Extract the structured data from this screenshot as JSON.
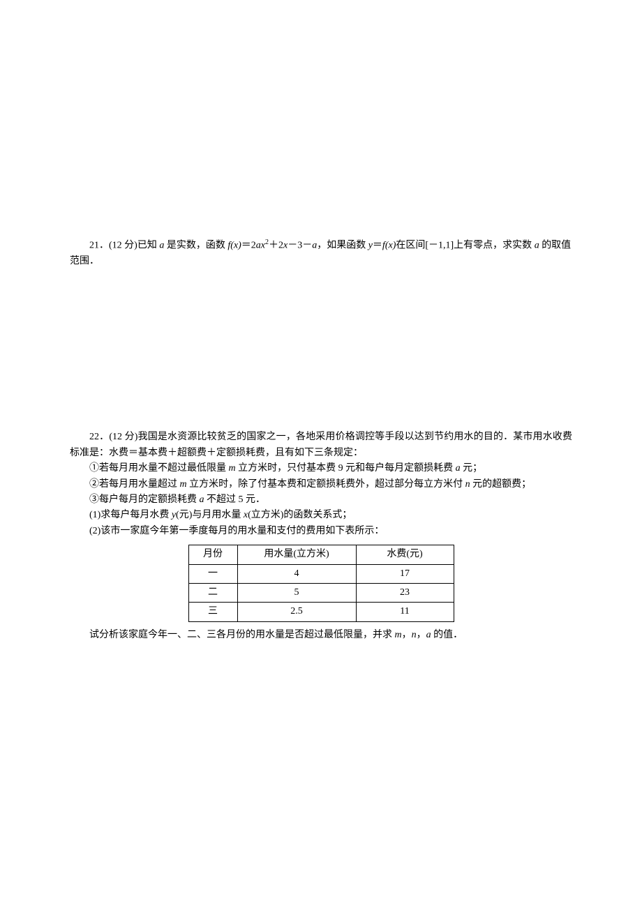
{
  "problem21": {
    "number": "21．",
    "points": "(12 分)",
    "text_part1": "已知 ",
    "var_a1": "a",
    "text_part2": " 是实数，函数 ",
    "fx": "f",
    "x1": "(x)",
    "eq": "＝2",
    "a2": "a",
    "x2": "x",
    "sup2": "2",
    "plus1": "＋2",
    "x3": "x",
    "minus": "－3－",
    "a3": "a",
    "text_part3": "，如果函数 ",
    "y": "y",
    "eq2": "＝",
    "fx2": "f",
    "x4": "(x)",
    "text_part4": "在区间[－1,1]上有零点，求实数 ",
    "a4": "a",
    "text_part5": " 的取值范围．"
  },
  "problem22": {
    "number": "22．",
    "points": "(12 分)",
    "intro": "我国是水资源比较贫乏的国家之一，各地采用价格调控等手段以达到节约用水的目的．某市用水收费标准是：水费＝基本费＋超额费＋定额损耗费，且有如下三条规定：",
    "rule1_pre": "①若每月用水量不超过最低限量 ",
    "m1": "m",
    "rule1_mid": " 立方米时，只付基本费 9 元和每户每月定额损耗费 ",
    "a1": "a",
    "rule1_end": " 元；",
    "rule2_pre": "②若每月用水量超过 ",
    "m2": "m",
    "rule2_mid": " 立方米时，除了付基本费和定额损耗费外，超过部分每立方米付 ",
    "n1": "n",
    "rule2_end": " 元的超额费；",
    "rule3_pre": "③每户每月的定额损耗费 ",
    "a2": "a",
    "rule3_end": " 不超过 5 元．",
    "q1_pre": "(1)求每户每月水费 ",
    "y1": "y",
    "q1_mid1": "(元)与月用水量 ",
    "x1": "x",
    "q1_end": "(立方米)的函数关系式；",
    "q2": "(2)该市一家庭今年第一季度每月的用水量和支付的费用如下表所示：",
    "table": {
      "headers": {
        "month": "月份",
        "usage": "用水量(立方米)",
        "fee": "水费(元)"
      },
      "rows": [
        {
          "month": "一",
          "usage": "4",
          "fee": "17"
        },
        {
          "month": "二",
          "usage": "5",
          "fee": "23"
        },
        {
          "month": "三",
          "usage": "2.5",
          "fee": "11"
        }
      ]
    },
    "final_pre": "试分析该家庭今年一、二、三各月份的用水量是否超过最低限量，并求 ",
    "m3": "m",
    "comma1": "，",
    "n2": "n",
    "comma2": "，",
    "a3": "a",
    "final_end": " 的值．"
  }
}
